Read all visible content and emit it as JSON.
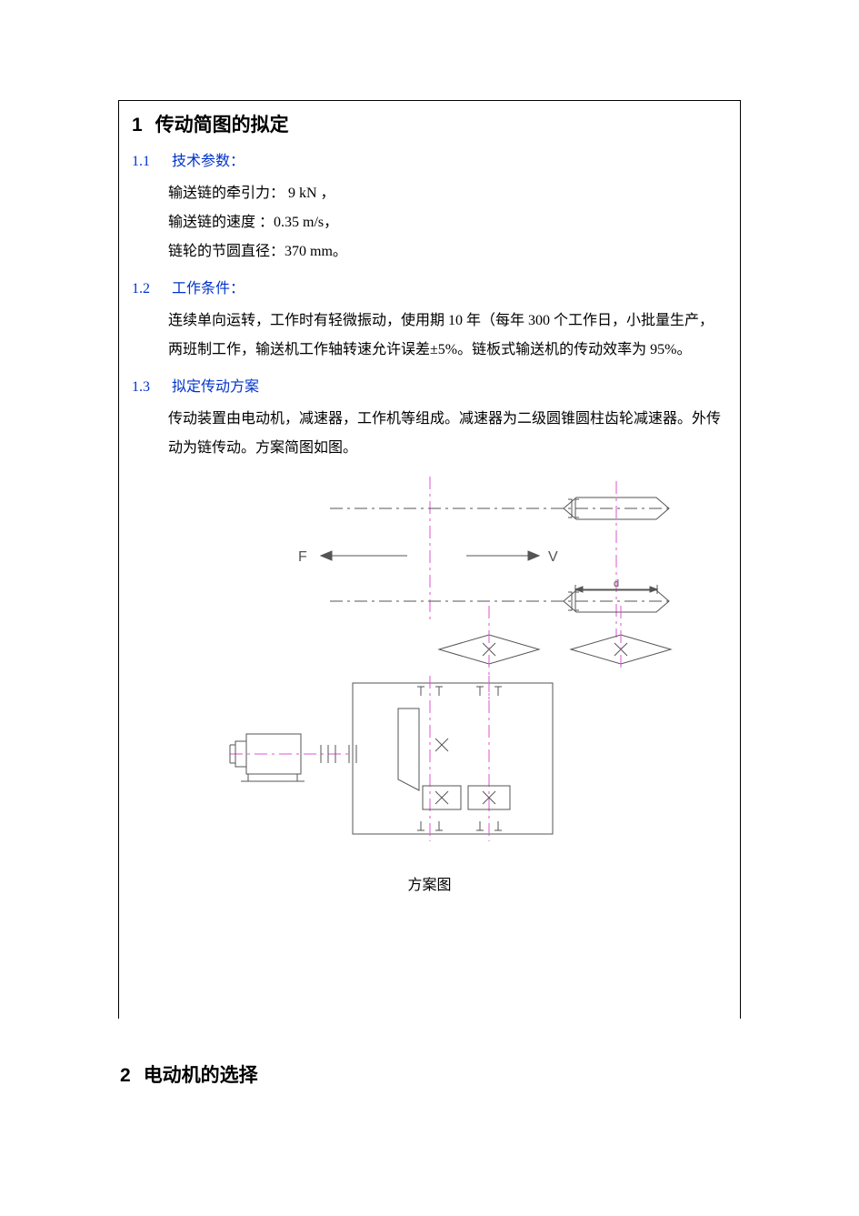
{
  "section1": {
    "num": "1",
    "title": "传动简图的拟定",
    "s11": {
      "num": "1.1",
      "title": "技术参数：",
      "line1": "输送链的牵引力：  9 kN ，",
      "line2": "输送链的速度  ：0.35 m/s，",
      "line3": "链轮的节圆直径：370 mm。"
    },
    "s12": {
      "num": "1.2",
      "title": "工作条件：",
      "para1": "连续单向运转，工作时有轻微振动，使用期 10 年（每年 300 个工作日，小批量生产，",
      "para2": "两班制工作，输送机工作轴转速允许误差±5%。链板式输送机的传动效率为 95%。"
    },
    "s13": {
      "num": "1.3",
      "title": "拟定传动方案",
      "para1": "传动装置由电动机，减速器，工作机等组成。减速器为二级圆锥圆柱齿轮减速器。外传",
      "para2": "动为链传动。方案简图如图。"
    },
    "figure_caption": "方案图"
  },
  "section2": {
    "num": "2",
    "title": "电动机的选择"
  },
  "diagram": {
    "labels": {
      "F": "F",
      "V": "V",
      "d": "d"
    },
    "colors": {
      "line": "#555555",
      "center": "#dd55cc",
      "text": "#555555"
    },
    "stroke_width": 1,
    "font_size": 16,
    "font_size_small": 11
  }
}
